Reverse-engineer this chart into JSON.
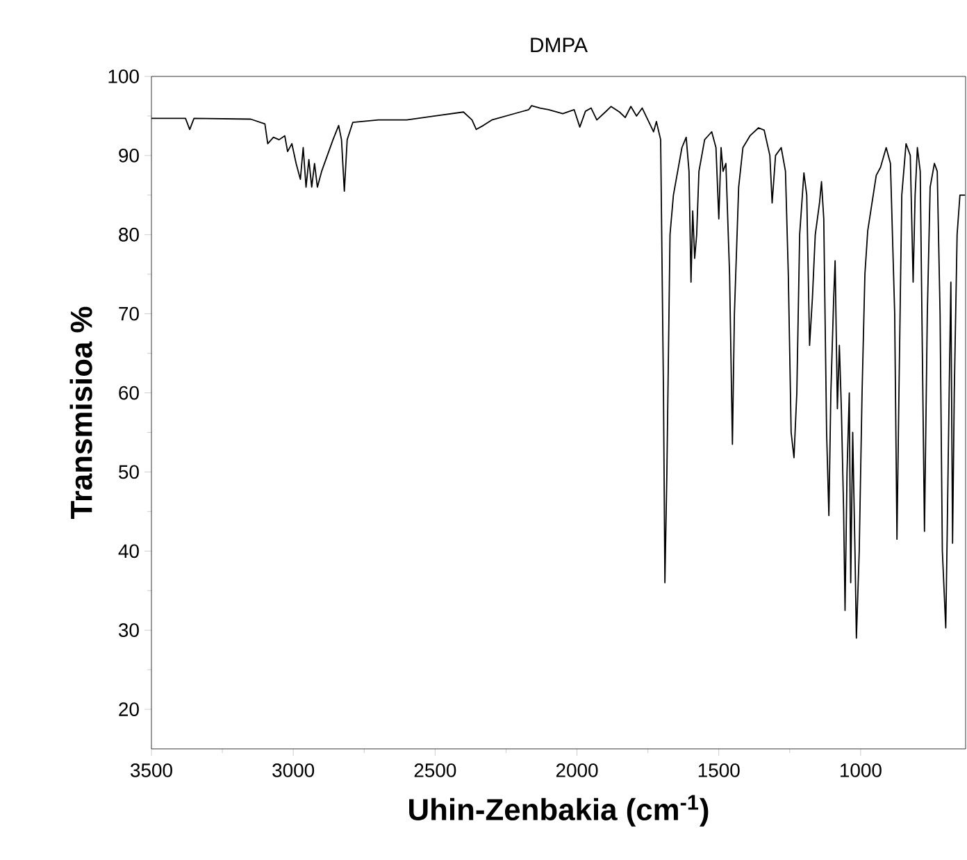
{
  "chart_data": {
    "type": "line",
    "title": "DMPA",
    "xlabel": "Uhin-Zenbakia (cm$^{-1}$)",
    "ylabel": "Transmisioa %",
    "xlim": [
      3500,
      630
    ],
    "ylim": [
      15,
      100
    ],
    "xticks": [
      3500,
      3000,
      2500,
      2000,
      1500,
      1000
    ],
    "yticks": [
      20,
      30,
      40,
      50,
      60,
      70,
      80,
      90,
      100
    ],
    "series": [
      {
        "color": "#000000",
        "x": [
          3500,
          3380,
          3365,
          3350,
          3150,
          3100,
          3090,
          3070,
          3050,
          3030,
          3020,
          3005,
          2990,
          2975,
          2965,
          2955,
          2945,
          2935,
          2925,
          2915,
          2900,
          2880,
          2860,
          2840,
          2830,
          2820,
          2810,
          2790,
          2700,
          2600,
          2500,
          2400,
          2370,
          2355,
          2330,
          2300,
          2200,
          2170,
          2160,
          2130,
          2100,
          2050,
          2010,
          1990,
          1970,
          1950,
          1930,
          1900,
          1880,
          1850,
          1830,
          1810,
          1790,
          1770,
          1750,
          1730,
          1720,
          1705,
          1695,
          1690,
          1683,
          1672,
          1660,
          1645,
          1630,
          1615,
          1605,
          1598,
          1592,
          1585,
          1578,
          1570,
          1550,
          1525,
          1510,
          1500,
          1492,
          1485,
          1475,
          1462,
          1452,
          1445,
          1430,
          1415,
          1390,
          1360,
          1340,
          1320,
          1312,
          1300,
          1280,
          1265,
          1255,
          1245,
          1235,
          1225,
          1215,
          1200,
          1190,
          1180,
          1170,
          1160,
          1145,
          1138,
          1130,
          1120,
          1112,
          1105,
          1095,
          1090,
          1082,
          1075,
          1068,
          1060,
          1055,
          1048,
          1040,
          1035,
          1028,
          1020,
          1015,
          1005,
          995,
          985,
          975,
          960,
          945,
          930,
          910,
          895,
          880,
          872,
          865,
          855,
          840,
          825,
          815,
          808,
          800,
          790,
          775,
          765,
          755,
          740,
          730,
          720,
          712,
          700,
          695,
          688,
          682,
          676,
          670,
          660,
          650,
          632
        ],
        "values": [
          94.7,
          94.7,
          93.3,
          94.7,
          94.6,
          94,
          91.5,
          92.3,
          92,
          92.5,
          90.5,
          91.5,
          89,
          87,
          91,
          86,
          89.5,
          86,
          89,
          86,
          88,
          90,
          92,
          93.8,
          92,
          85.5,
          92,
          94.2,
          94.5,
          94.5,
          95,
          95.5,
          94.5,
          93.3,
          93.8,
          94.5,
          95.5,
          95.8,
          96.3,
          96,
          95.8,
          95.3,
          95.8,
          93.6,
          95.6,
          96,
          94.5,
          95.5,
          96.2,
          95.5,
          94.8,
          96.2,
          95,
          96,
          94.5,
          93,
          94.3,
          92,
          60,
          36,
          50,
          80,
          85,
          88,
          91,
          92.3,
          88,
          74,
          83,
          77,
          80,
          88,
          92,
          93,
          91,
          82,
          91,
          88,
          89,
          75,
          53.5,
          70,
          86,
          91,
          92.5,
          93.5,
          93.2,
          90,
          84,
          90,
          91,
          88,
          75,
          55,
          51.8,
          60,
          80,
          87.8,
          85,
          66,
          72,
          80,
          84,
          86.7,
          82,
          55,
          44.5,
          60,
          72,
          76.7,
          58,
          66,
          58,
          45,
          32.5,
          50,
          60,
          36,
          55,
          40,
          29,
          40,
          60,
          75,
          80.5,
          84,
          87.5,
          88.5,
          91,
          89,
          70,
          41.5,
          60,
          85,
          91.5,
          90,
          74,
          85,
          91,
          88,
          42.5,
          70,
          86,
          89,
          88,
          70,
          40,
          30.3,
          42,
          60,
          74,
          41,
          60,
          80,
          85,
          85
        ]
      }
    ]
  }
}
